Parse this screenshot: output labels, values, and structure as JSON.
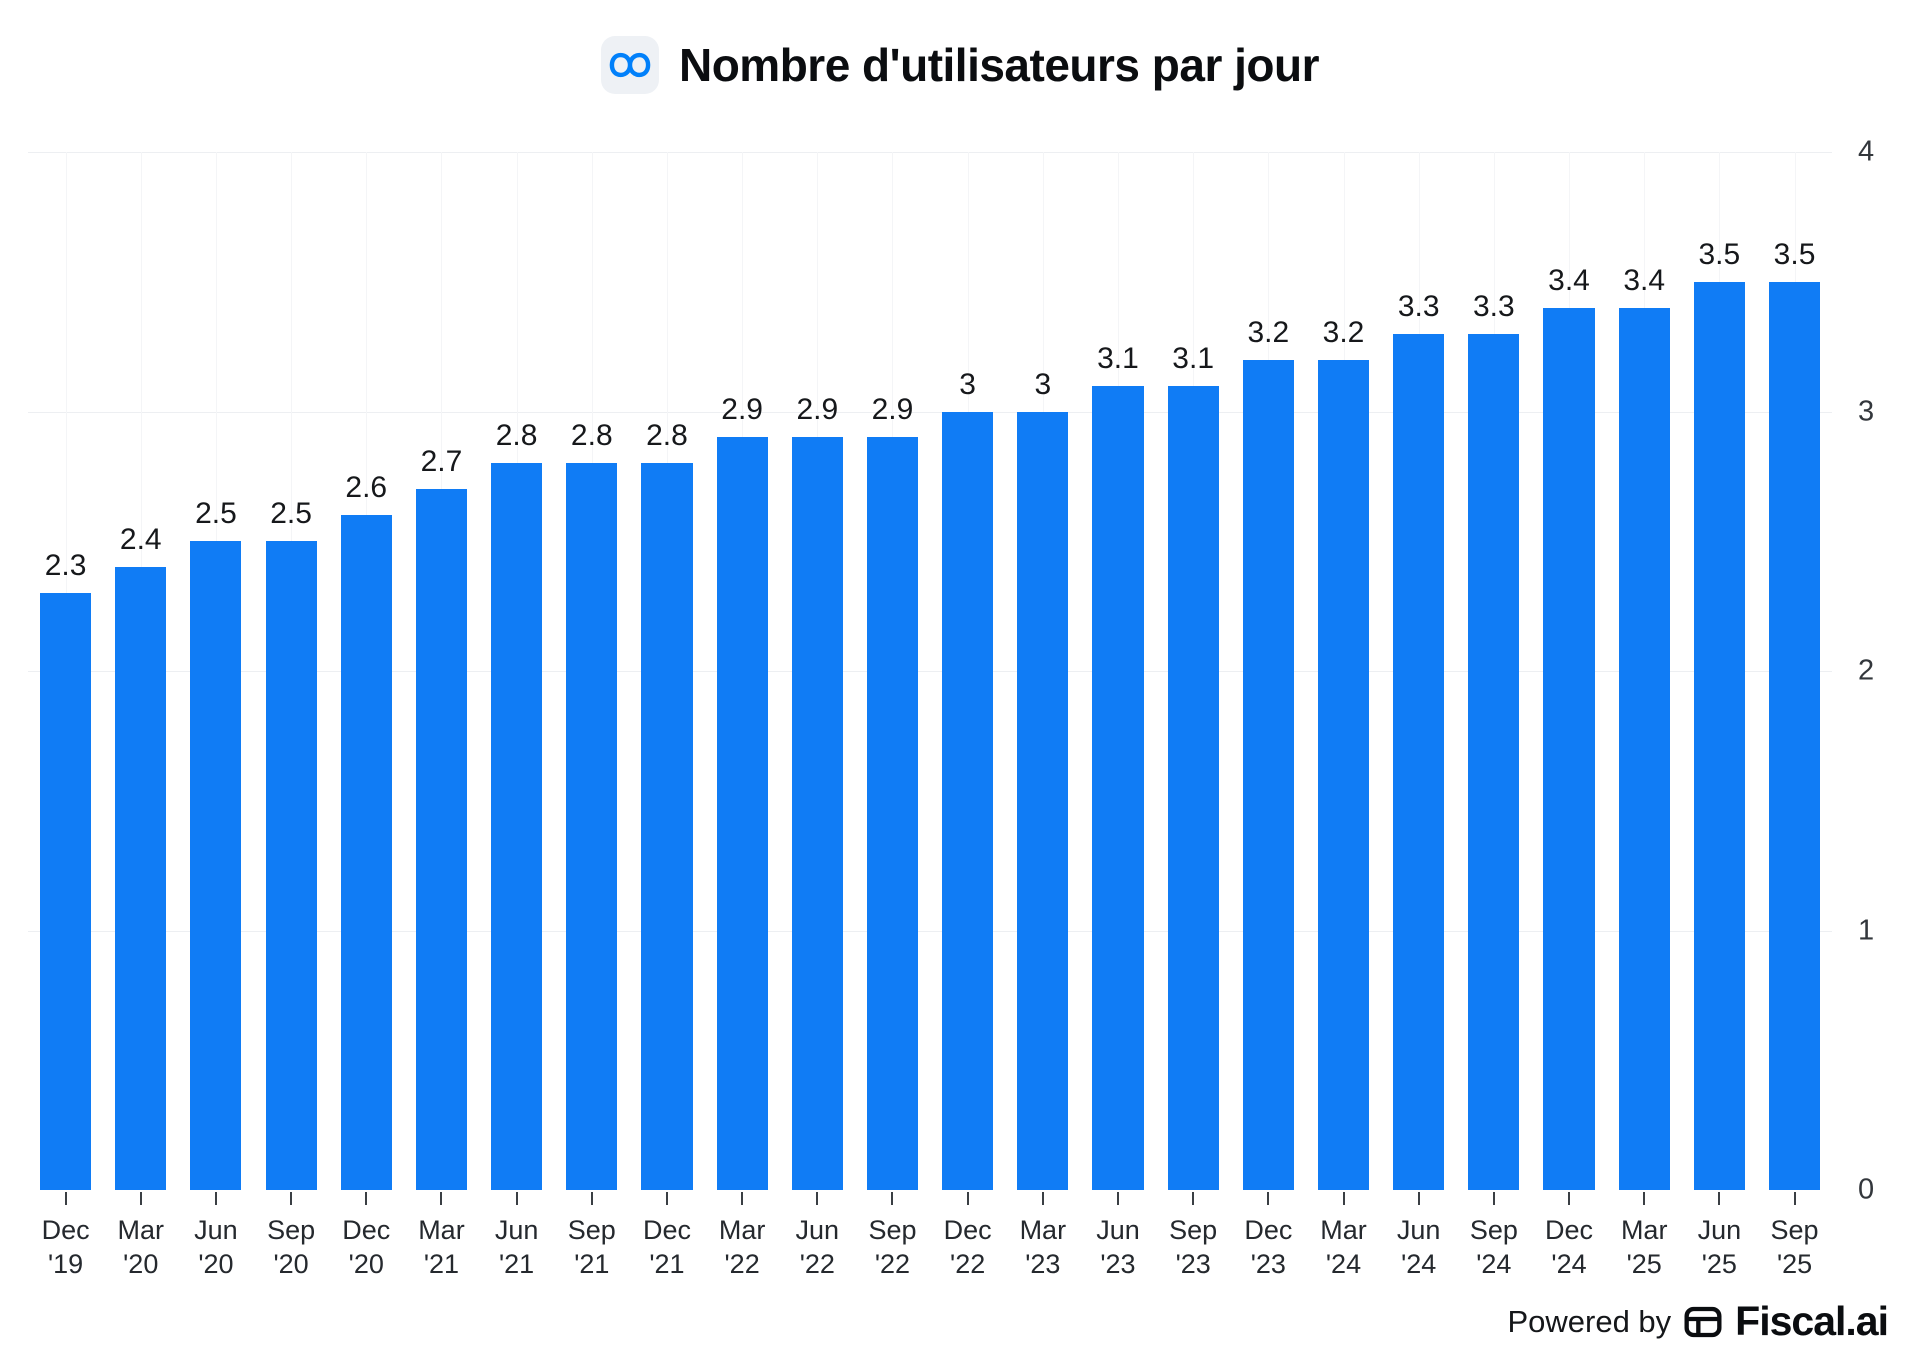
{
  "header": {
    "title": "Nombre d'utilisateurs par jour"
  },
  "chart_data": {
    "type": "bar",
    "title": "Nombre d'utilisateurs par jour",
    "categories": [
      "Dec '19",
      "Mar '20",
      "Jun '20",
      "Sep '20",
      "Dec '20",
      "Mar '21",
      "Jun '21",
      "Sep '21",
      "Dec '21",
      "Mar '22",
      "Jun '22",
      "Sep '22",
      "Dec '22",
      "Mar '23",
      "Jun '23",
      "Sep '23",
      "Dec '23",
      "Mar '24",
      "Jun '24",
      "Sep '24",
      "Dec '24",
      "Mar '25",
      "Jun '25",
      "Sep '25"
    ],
    "values": [
      2.3,
      2.4,
      2.5,
      2.5,
      2.6,
      2.7,
      2.8,
      2.8,
      2.8,
      2.9,
      2.9,
      2.9,
      3,
      3,
      3.1,
      3.1,
      3.2,
      3.2,
      3.3,
      3.3,
      3.4,
      3.4,
      3.5,
      3.5
    ],
    "labels": [
      "2.3",
      "2.4",
      "2.5",
      "2.5",
      "2.6",
      "2.7",
      "2.8",
      "2.8",
      "2.8",
      "2.9",
      "2.9",
      "2.9",
      "3",
      "3",
      "3.1",
      "3.1",
      "3.2",
      "3.2",
      "3.3",
      "3.3",
      "3.4",
      "3.4",
      "3.5",
      "3.5"
    ],
    "xlabel": "",
    "ylabel": "",
    "ylim": [
      0,
      4
    ],
    "yticks": [
      0,
      1,
      2,
      3,
      4
    ],
    "y_axis_position": "right",
    "grid": true,
    "legend": false,
    "bar_color": "#107CF5",
    "meta_logo_color": "#0180FA"
  },
  "footer": {
    "powered_by": "Powered by",
    "brand": "Fiscal.ai"
  }
}
